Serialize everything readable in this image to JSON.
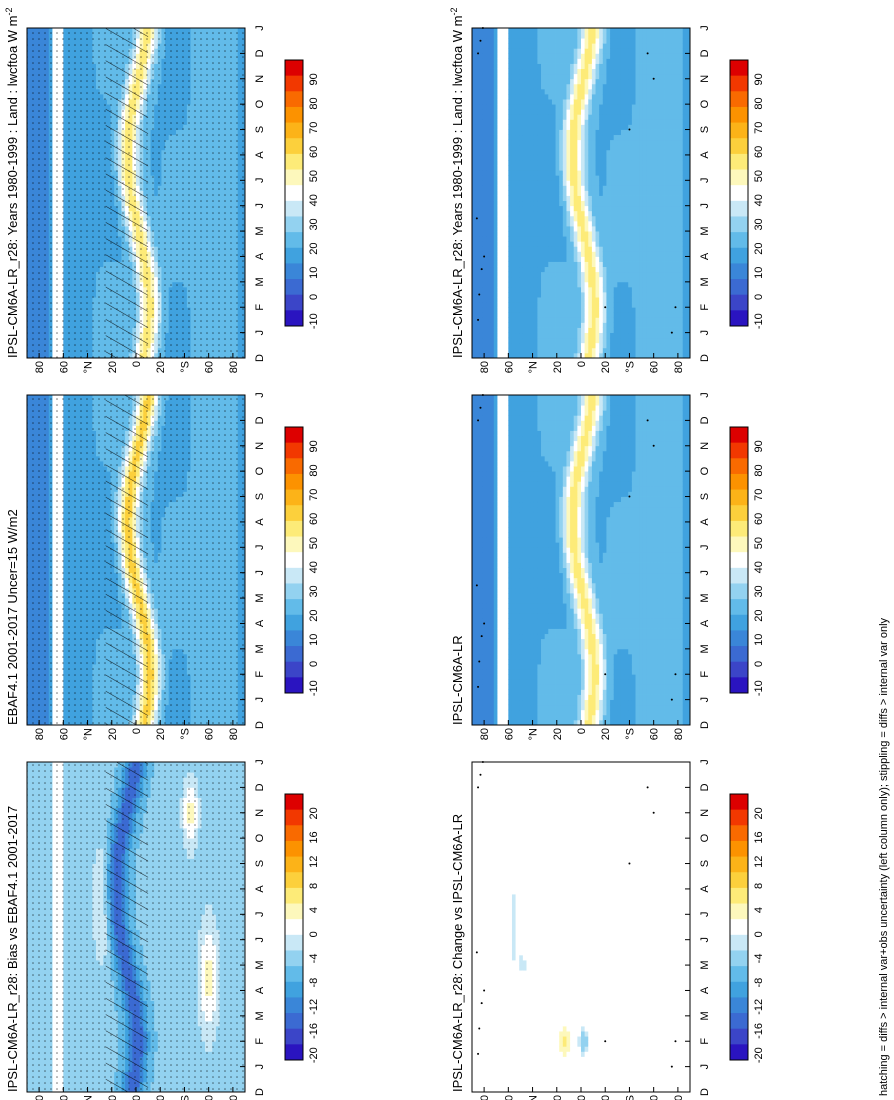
{
  "footnote": "hatching = diffs > internal var+obs uncertainty (left column only); stippling = diffs > internal var only",
  "months": [
    "D",
    "J",
    "F",
    "M",
    "A",
    "M",
    "J",
    "J",
    "A",
    "S",
    "O",
    "N",
    "D",
    "J"
  ],
  "lat_ticks": [
    "80",
    "60",
    "°N",
    "20",
    "0",
    "20",
    "°S",
    "60",
    "80"
  ],
  "palettes": {
    "field": [
      "#dd0000",
      "#f23800",
      "#f96a00",
      "#fc9200",
      "#fcb318",
      "#fcd03c",
      "#fdeb78",
      "#fdf8bc",
      "#ffffff",
      "#c9e8f6",
      "#93d2f0",
      "#62bbe9",
      "#40a2df",
      "#3a86d8",
      "#3b6ad2",
      "#3b45c8",
      "#2a14c0"
    ],
    "diff": [
      "#dd0000",
      "#f23800",
      "#f96a00",
      "#fc9200",
      "#fcb318",
      "#fcd03c",
      "#fdeb78",
      "#fdf8bc",
      "#ffffff",
      "#c9e8f6",
      "#93d2f0",
      "#62bbe9",
      "#40a2df",
      "#3a86d8",
      "#3b6ad2",
      "#3b45c8",
      "#2a14c0"
    ]
  },
  "colorbars": {
    "field_labels": [
      "90",
      "80",
      "70",
      "60",
      "50",
      "40",
      "30",
      "20",
      "10",
      "0",
      "-10"
    ],
    "diff_labels": [
      "20",
      "16",
      "12",
      "8",
      "4",
      "0",
      "-4",
      "-8",
      "-12",
      "-16",
      "-20"
    ]
  },
  "panels": [
    {
      "id": "left-top",
      "title": "IPSL-CM6A-LR_r28: Years 1980-1999 : Land : lwcftoa W m",
      "title_sup": "-2",
      "kind": "field",
      "hatch": true,
      "stipple": "dense"
    },
    {
      "id": "left-mid",
      "title": "EBAF4.1 2001-2017 Uncer=15 W/m2",
      "title_sup": "",
      "kind": "field",
      "hatch": true,
      "stipple": "dense"
    },
    {
      "id": "left-bot",
      "title": "IPSL-CM6A-LR_r28: Bias vs EBAF4.1 2001-2017",
      "title_sup": "",
      "kind": "bias",
      "hatch": true,
      "stipple": "dense"
    },
    {
      "id": "right-top",
      "title": "IPSL-CM6A-LR_r28: Years 1980-1999 : Land : lwcftoa W m",
      "title_sup": "-2",
      "kind": "field",
      "hatch": false,
      "stipple": "sparse"
    },
    {
      "id": "right-mid",
      "title": "IPSL-CM6A-LR",
      "title_sup": "",
      "kind": "field",
      "hatch": false,
      "stipple": "sparse"
    },
    {
      "id": "right-bot",
      "title": "IPSL-CM6A-LR_r28: Change vs IPSL-CM6A-LR",
      "title_sup": "",
      "kind": "change",
      "hatch": false,
      "stipple": "sparse"
    }
  ],
  "chart_data": [
    {
      "type": "heatmap",
      "title": "IPSL-CM6A-LR_r28: Years 1980-1999 : Land : lwcftoa W m-2",
      "x": "month (D–J)",
      "y": "latitude (80°N–80°S)",
      "clim": [
        -10,
        90
      ]
    },
    {
      "type": "heatmap",
      "title": "EBAF4.1 2001-2017 Uncer=15 W/m2",
      "x": "month (D–J)",
      "y": "latitude (80°N–80°S)",
      "clim": [
        -10,
        90
      ]
    },
    {
      "type": "heatmap",
      "title": "IPSL-CM6A-LR_r28: Bias vs EBAF4.1 2001-2017",
      "x": "month (D–J)",
      "y": "latitude (80°N–80°S)",
      "clim": [
        -20,
        20
      ]
    },
    {
      "type": "heatmap",
      "title": "IPSL-CM6A-LR_r28: Years 1980-1999 : Land : lwcftoa W m-2",
      "x": "month (D–J)",
      "y": "latitude (80°N–80°S)",
      "clim": [
        -10,
        90
      ]
    },
    {
      "type": "heatmap",
      "title": "IPSL-CM6A-LR",
      "x": "month (D–J)",
      "y": "latitude (80°N–80°S)",
      "clim": [
        -10,
        90
      ]
    },
    {
      "type": "heatmap",
      "title": "IPSL-CM6A-LR_r28: Change vs IPSL-CM6A-LR",
      "x": "month (D–J)",
      "y": "latitude (80°N–80°S)",
      "clim": [
        -20,
        20
      ]
    }
  ]
}
